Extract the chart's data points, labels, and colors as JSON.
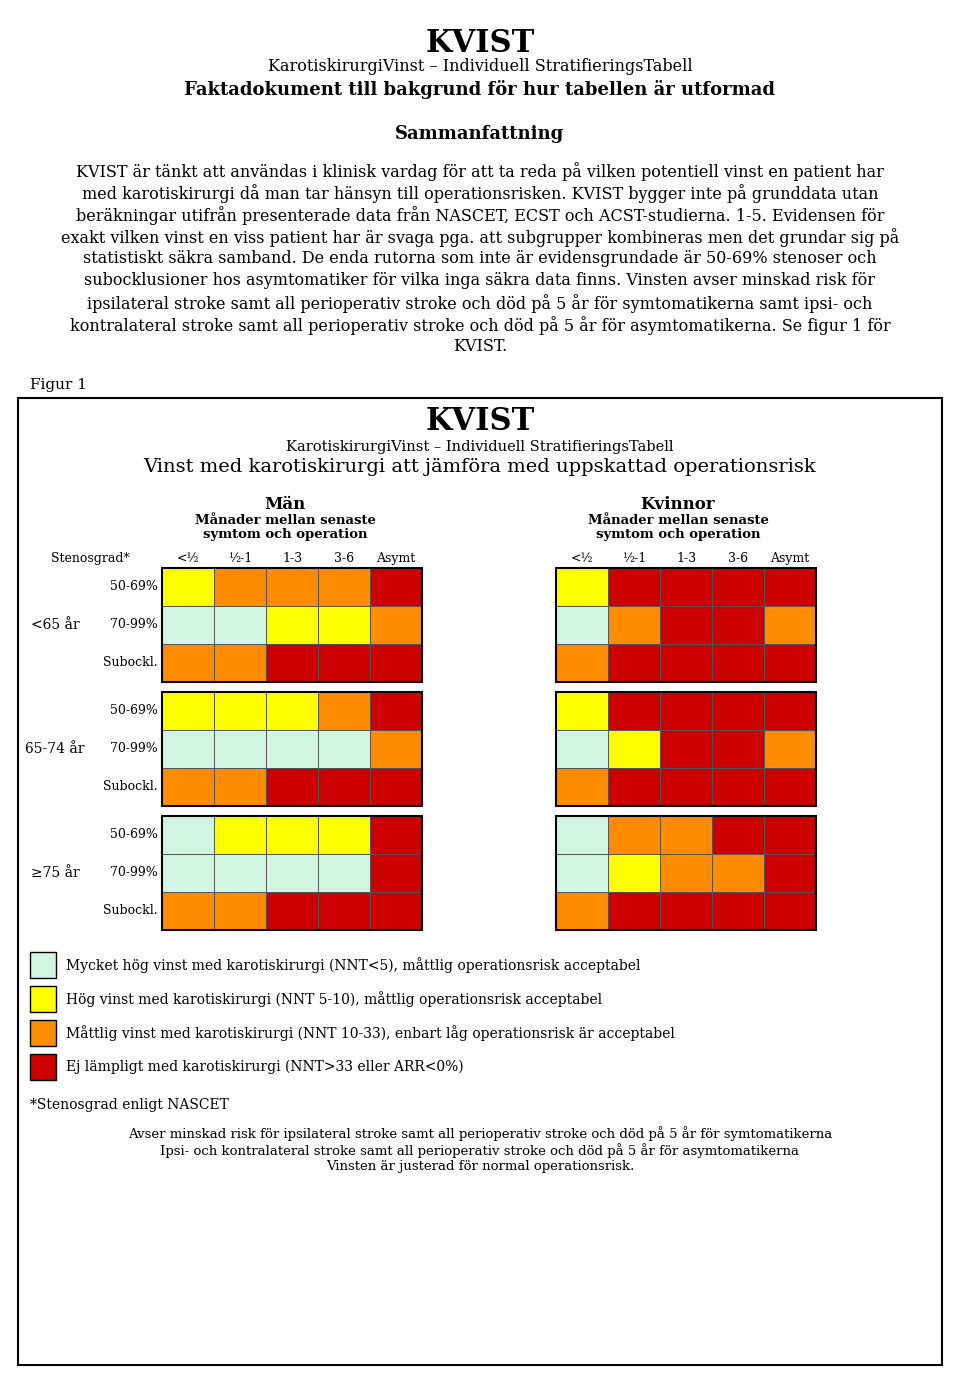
{
  "title_main": "KVIST",
  "title_sub": "KarotiskirurgiVinst – Individuell StratifieringsTabell",
  "title_bold": "Faktadokument till bakgrund för hur tabellen är utformad",
  "section_header": "Sammanfattning",
  "body_lines": [
    "KVIST är tänkt att användas i klinisk vardag för att ta reda på vilken potentiell vinst en patient har",
    "med karotiskirurgi då man tar hänsyn till operationsrisken. KVIST bygger inte på grunddata utan",
    "beräkningar utifrån presenterade data från NASCET, ECST och ACST-studierna. 1-5. Evidensen för",
    "exakt vilken vinst en viss patient har är svaga pga. att subgrupper kombineras men det grundar sig på",
    "statistiskt säkra samband. De enda rutorna som inte är evidensgrundade är 50-69% stenoser och",
    "subocklusioner hos asymtomatiker för vilka inga säkra data finns. Vinsten avser minskad risk för",
    "ipsilateral stroke samt all perioperativ stroke och död på 5 år för symtomatikerna samt ipsi- och",
    "kontralateral stroke samt all perioperativ stroke och död på 5 år för asymtomatikerna. Se figur 1 för",
    "KVIST."
  ],
  "figur_label": "Figur 1",
  "fig_title_main": "KVIST",
  "fig_title_sub": "KarotiskirurgiVinst – Individuell StratifieringsTabell",
  "fig_title_desc": "Vinst med karotiskirurgi att jämföra med uppskattad operationsrisk",
  "col_group_men": "Män",
  "col_group_women": "Kvinnor",
  "col_subheader1": "Månader mellan senaste",
  "col_subheader2": "symtom och operation",
  "row_label_stenosgrad": "Stenosgrad*",
  "col_labels": [
    "<½",
    "½-1",
    "1-3",
    "3-6",
    "Asymt"
  ],
  "age_groups": [
    "<65 år",
    "65-74 år",
    "≥75 år"
  ],
  "stenosis_rows": [
    "50-69%",
    "70-99%",
    "Subockl."
  ],
  "color_green": "#d0f5e0",
  "color_yellow": "#ffff00",
  "color_orange": "#ff8c00",
  "color_red": "#cc0000",
  "grid_men": [
    [
      [
        "yellow",
        "orange",
        "orange",
        "orange",
        "red"
      ],
      [
        "green",
        "green",
        "yellow",
        "yellow",
        "orange"
      ],
      [
        "orange",
        "orange",
        "red",
        "red",
        "red"
      ]
    ],
    [
      [
        "yellow",
        "yellow",
        "yellow",
        "orange",
        "red"
      ],
      [
        "green",
        "green",
        "green",
        "green",
        "orange"
      ],
      [
        "orange",
        "orange",
        "red",
        "red",
        "red"
      ]
    ],
    [
      [
        "green",
        "yellow",
        "yellow",
        "yellow",
        "red"
      ],
      [
        "green",
        "green",
        "green",
        "green",
        "red"
      ],
      [
        "orange",
        "orange",
        "red",
        "red",
        "red"
      ]
    ]
  ],
  "grid_women": [
    [
      [
        "yellow",
        "red",
        "red",
        "red",
        "red"
      ],
      [
        "green",
        "orange",
        "red",
        "red",
        "orange"
      ],
      [
        "orange",
        "red",
        "red",
        "red",
        "red"
      ]
    ],
    [
      [
        "yellow",
        "red",
        "red",
        "red",
        "red"
      ],
      [
        "green",
        "yellow",
        "red",
        "red",
        "orange"
      ],
      [
        "orange",
        "red",
        "red",
        "red",
        "red"
      ]
    ],
    [
      [
        "green",
        "orange",
        "orange",
        "red",
        "red"
      ],
      [
        "green",
        "yellow",
        "orange",
        "orange",
        "red"
      ],
      [
        "orange",
        "red",
        "red",
        "red",
        "red"
      ]
    ]
  ],
  "legend_colors": [
    "#d0f5e0",
    "#ffff00",
    "#ff8c00",
    "#cc0000"
  ],
  "legend_texts": [
    "Mycket hög vinst med karotiskirurgi (NNT<5), måttlig operationsrisk acceptabel",
    "Hög vinst med karotiskirurgi (NNT 5-10), måttlig operationsrisk acceptabel",
    "Måttlig vinst med karotiskirurgi (NNT 10-33), enbart låg operationsrisk är acceptabel",
    "Ej lämpligt med karotiskirurgi (NNT>33 eller ARR<0%)"
  ],
  "footnote1": "*Stenosgrad enligt NASCET",
  "footnote2": "Avser minskad risk för ipsilateral stroke samt all perioperativ stroke och död på 5 år för symtomatikerna",
  "footnote3": "Ipsi- och kontralateral stroke samt all perioperativ stroke och död på 5 år för asymtomatikerna",
  "footnote4": "Vinsten är justerad för normal operationsrisk."
}
